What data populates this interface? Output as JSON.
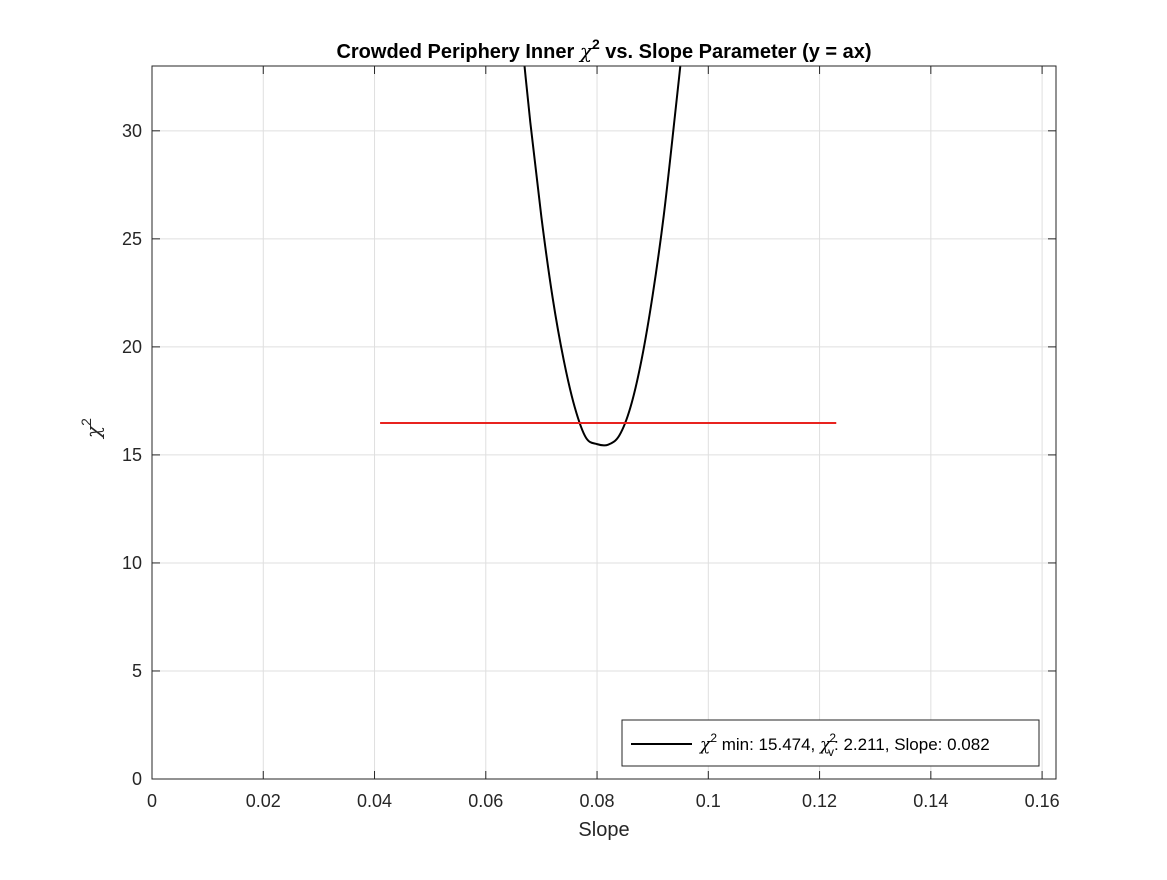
{
  "figure": {
    "title_prefix": "Crowded Periphery Inner ",
    "title_chi": "χ",
    "title_sup": "2",
    "title_suffix": " vs. Slope Parameter (y = ax)",
    "xlabel": "Slope",
    "ylabel_chi": "χ",
    "ylabel_sup": "2"
  },
  "legend": {
    "chi": "χ",
    "sup": "2",
    "text_a": " min: 15.474, ",
    "chi_nu": "χ",
    "sub_nu": "v",
    "sup_nu": "2",
    "text_b": ": 2.211, Slope: 0.082"
  },
  "colors": {
    "curve": "#000000",
    "threshold": "#e8231f",
    "grid": "#dfdfdf",
    "axis": "#262626"
  },
  "chart_data": {
    "type": "line",
    "xlim": [
      0,
      0.1625
    ],
    "ylim": [
      0,
      33
    ],
    "xticks": [
      0,
      0.02,
      0.04,
      0.06,
      0.08,
      0.1,
      0.12,
      0.14,
      0.16
    ],
    "xtick_labels": [
      "0",
      "0.02",
      "0.04",
      "0.06",
      "0.08",
      "0.1",
      "0.12",
      "0.14",
      "0.16"
    ],
    "yticks": [
      0,
      5,
      10,
      15,
      20,
      25,
      30
    ],
    "ytick_labels": [
      "0",
      "5",
      "10",
      "15",
      "20",
      "25",
      "30"
    ],
    "grid": true,
    "legend_location": "bottom-right",
    "series": [
      {
        "name": "χ² min: 15.474, χ²ᵥ: 2.211, Slope: 0.082",
        "style": "curve",
        "x": [
          0.066,
          0.068,
          0.07,
          0.072,
          0.074,
          0.076,
          0.078,
          0.08,
          0.082,
          0.084,
          0.086,
          0.088,
          0.09,
          0.092,
          0.094,
          0.096,
          0.097
        ],
        "y": [
          35.5,
          30.4,
          26.0,
          22.3,
          19.4,
          17.2,
          15.8,
          15.5,
          15.474,
          15.9,
          17.2,
          19.4,
          22.4,
          26.1,
          30.7,
          35.5,
          38.2
        ]
      },
      {
        "style": "threshold",
        "x": [
          0.041,
          0.123
        ],
        "y": [
          16.474,
          16.474
        ]
      }
    ]
  }
}
